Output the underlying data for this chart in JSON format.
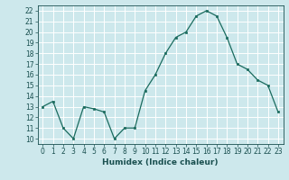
{
  "x": [
    0,
    1,
    2,
    3,
    4,
    5,
    6,
    7,
    8,
    9,
    10,
    11,
    12,
    13,
    14,
    15,
    16,
    17,
    18,
    19,
    20,
    21,
    22,
    23
  ],
  "y": [
    13.0,
    13.5,
    11.0,
    10.0,
    13.0,
    12.8,
    12.5,
    10.0,
    11.0,
    11.0,
    14.5,
    16.0,
    18.0,
    19.5,
    20.0,
    21.5,
    22.0,
    21.5,
    19.5,
    17.0,
    16.5,
    15.5,
    15.0,
    12.5
  ],
  "xlabel": "Humidex (Indice chaleur)",
  "xlim": [
    -0.5,
    23.5
  ],
  "ylim": [
    9.5,
    22.5
  ],
  "yticks": [
    10,
    11,
    12,
    13,
    14,
    15,
    16,
    17,
    18,
    19,
    20,
    21,
    22
  ],
  "xticks": [
    0,
    1,
    2,
    3,
    4,
    5,
    6,
    7,
    8,
    9,
    10,
    11,
    12,
    13,
    14,
    15,
    16,
    17,
    18,
    19,
    20,
    21,
    22,
    23
  ],
  "line_color": "#1a6b5e",
  "marker_color": "#1a6b5e",
  "bg_color": "#cde8ec",
  "grid_color": "#ffffff",
  "tick_fontsize": 5.5,
  "label_fontsize": 6.5,
  "label_color": "#1a5050"
}
